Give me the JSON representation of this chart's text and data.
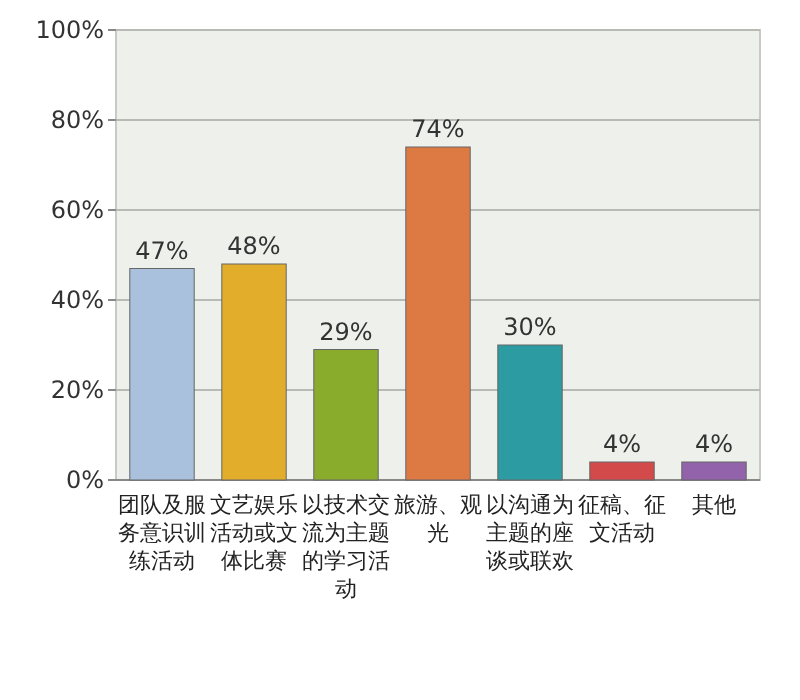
{
  "chart_data": {
    "type": "bar",
    "categories": [
      "团队及服务意识训练活动",
      "文艺娱乐活动或文体比赛",
      "以技术交流为主题的学习活动",
      "旅游、观光",
      "以沟通为主题的座谈或联欢",
      "征稿、征文活动",
      "其他"
    ],
    "values": [
      47,
      48,
      29,
      74,
      30,
      4,
      4
    ],
    "colors": [
      "#a9c1dd",
      "#e3ad2c",
      "#8aac2c",
      "#dd7a44",
      "#2d9ca2",
      "#d24a4a",
      "#9263aa"
    ],
    "value_labels": [
      "47%",
      "48%",
      "29%",
      "74%",
      "30%",
      "4%",
      "4%"
    ],
    "ylim": [
      0,
      100
    ],
    "yticks": [
      {
        "value": 0,
        "label": "0%"
      },
      {
        "value": 20,
        "label": "20%"
      },
      {
        "value": 40,
        "label": "40%"
      },
      {
        "value": 60,
        "label": "60%"
      },
      {
        "value": 80,
        "label": "80%"
      },
      {
        "value": 100,
        "label": "100%"
      }
    ],
    "grid": "y"
  }
}
